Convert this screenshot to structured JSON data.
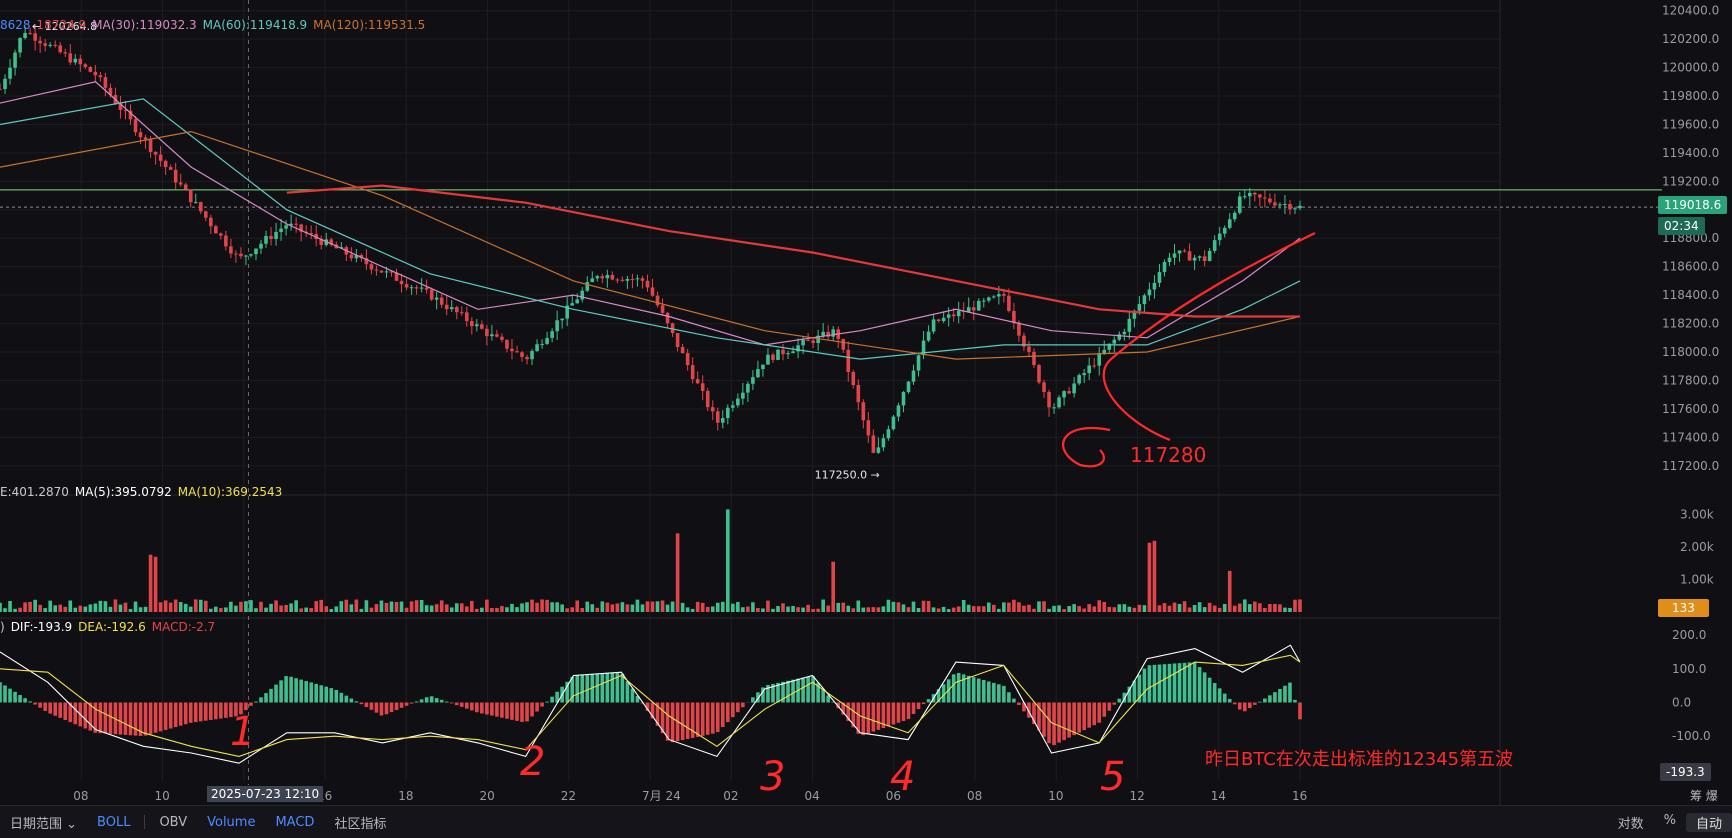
{
  "colors": {
    "bg": "#101014",
    "up": "#3fbf8f",
    "down": "#e0454a",
    "ma5": "#e05a6e",
    "ma30": "#d88ac7",
    "ma60": "#5fc9c0",
    "ma120": "#c8722f",
    "ma_long": "#e03a3a",
    "level": "#7be07b",
    "price_tag": "#29a37a",
    "vol_tag": "#e08e1a",
    "annotation": "#ff2a2a",
    "vol_ma5": "#ffffff",
    "vol_ma10": "#f0e050",
    "dif": "#ffffff",
    "dea": "#f0e050"
  },
  "price_legend": {
    "items": [
      {
        "text": "8628",
        "color": "#4f8cff"
      },
      {
        "text": "18724.9",
        "color": "#e0454a"
      },
      {
        "text": "MA(30):119032.3",
        "color": "#d88ac7"
      },
      {
        "text": "MA(60):119418.9",
        "color": "#5fc9c0"
      },
      {
        "text": "MA(120):119531.5",
        "color": "#c8722f"
      }
    ]
  },
  "volume_legend": {
    "items": [
      {
        "text": "E:401.2870",
        "color": "#c9c9cf"
      },
      {
        "text": "MA(5):395.0792",
        "color": "#ffffff"
      },
      {
        "text": "MA(10):369.2543",
        "color": "#f0e050"
      }
    ]
  },
  "macd_legend": {
    "items": [
      {
        "text": ")",
        "color": "#c9c9cf"
      },
      {
        "text": "DIF:-193.9",
        "color": "#ffffff"
      },
      {
        "text": "DEA:-192.6",
        "color": "#f0e050"
      },
      {
        "text": "MACD:-2.7",
        "color": "#e0454a"
      }
    ]
  },
  "chart_data": [
    {
      "type": "candlestick",
      "panel": "price",
      "y_axis_ticks": [
        117200,
        117400,
        117600,
        117800,
        118000,
        118200,
        118400,
        118600,
        118800,
        119000,
        119200,
        119400,
        119600,
        119800,
        120000,
        120200,
        120400
      ],
      "y_axis_labels": [
        "117200.0",
        "117400.0",
        "117600.0",
        "117800.0",
        "118000.0",
        "118200.0",
        "118400.0",
        "118600.0",
        "118800.0",
        "119000.0",
        "119200.0",
        "119400.0",
        "119600.0",
        "119800.0",
        "120000.0",
        "120200.0",
        "120400.0"
      ],
      "ylim": [
        117100,
        120440
      ],
      "x_tick_labels": [
        "08",
        "10",
        "14",
        "16",
        "18",
        "20",
        "22",
        "7月 24",
        "02",
        "04",
        "06",
        "08",
        "10",
        "12",
        "14",
        "16"
      ],
      "x_ticks": [
        2,
        4,
        6,
        8,
        10,
        12,
        14,
        16,
        18,
        20,
        22,
        24,
        26,
        28,
        30,
        32
      ],
      "x_count": 27.2,
      "crosshair_label": "2025-07-23 12:10",
      "crosshair_x": 5.2,
      "key_points": [
        {
          "t": 0,
          "price": 119850
        },
        {
          "t": 0.5,
          "price": 120264.8,
          "label": "← 120264.8"
        },
        {
          "t": 2,
          "price": 119950
        },
        {
          "t": 3,
          "price": 119500
        },
        {
          "t": 5,
          "price": 118650
        },
        {
          "t": 6,
          "price": 118900
        },
        {
          "t": 9,
          "price": 118400
        },
        {
          "t": 11,
          "price": 117950
        },
        {
          "t": 12.5,
          "price": 118550
        },
        {
          "t": 13.5,
          "price": 118500
        },
        {
          "t": 15,
          "price": 117500
        },
        {
          "t": 16,
          "price": 117950
        },
        {
          "t": 17.5,
          "price": 118150
        },
        {
          "t": 18.3,
          "price": 117250.0,
          "label": "117250.0 →"
        },
        {
          "t": 19.5,
          "price": 118200
        },
        {
          "t": 21,
          "price": 118400
        },
        {
          "t": 22,
          "price": 117600
        },
        {
          "t": 23.5,
          "price": 118150
        },
        {
          "t": 24.5,
          "price": 118700
        },
        {
          "t": 25.2,
          "price": 118650
        },
        {
          "t": 26,
          "price": 119100
        },
        {
          "t": 27.2,
          "price": 119018.6
        }
      ],
      "current_price": 119018.6,
      "current_price_label": "119018.6",
      "countdown": "02:34",
      "horizontal_level": 119140,
      "moving_averages": [
        {
          "name": "MA(30)",
          "points": [
            [
              0,
              119750
            ],
            [
              2,
              119900
            ],
            [
              4,
              119300
            ],
            [
              6,
              118900
            ],
            [
              8,
              118600
            ],
            [
              10,
              118300
            ],
            [
              12,
              118400
            ],
            [
              14,
              118250
            ],
            [
              16,
              118050
            ],
            [
              18,
              118150
            ],
            [
              20,
              118300
            ],
            [
              22,
              118150
            ],
            [
              24,
              118100
            ],
            [
              26,
              118500
            ],
            [
              27.2,
              118800
            ]
          ]
        },
        {
          "name": "MA(60)",
          "points": [
            [
              0,
              119600
            ],
            [
              3,
              119780
            ],
            [
              6,
              119000
            ],
            [
              9,
              118550
            ],
            [
              12,
              118300
            ],
            [
              15,
              118100
            ],
            [
              18,
              117950
            ],
            [
              21,
              118050
            ],
            [
              24,
              118050
            ],
            [
              26,
              118300
            ],
            [
              27.2,
              118500
            ]
          ]
        },
        {
          "name": "MA(120)",
          "points": [
            [
              0,
              119300
            ],
            [
              4,
              119550
            ],
            [
              8,
              119100
            ],
            [
              12,
              118500
            ],
            [
              16,
              118150
            ],
            [
              20,
              117950
            ],
            [
              24,
              118000
            ],
            [
              27.2,
              118250
            ]
          ]
        },
        {
          "name": "long",
          "points": [
            [
              6,
              119120
            ],
            [
              8,
              119170
            ],
            [
              11,
              119050
            ],
            [
              14,
              118850
            ],
            [
              17,
              118700
            ],
            [
              20,
              118500
            ],
            [
              23,
              118300
            ],
            [
              25,
              118250
            ],
            [
              27.2,
              118250
            ]
          ]
        }
      ],
      "annotations": [
        {
          "text": "117280",
          "color": "#ff2a2a"
        }
      ]
    },
    {
      "type": "bar",
      "panel": "volume",
      "y_axis_labels": [
        "1.00k",
        "2.00k",
        "3.00k"
      ],
      "y_axis_ticks": [
        1000,
        2000,
        3000
      ],
      "ylim": [
        0,
        3300
      ],
      "current_volume_label": "133",
      "peaks": [
        {
          "t": 3.2,
          "value": 2000
        },
        {
          "t": 14.2,
          "value": 2500
        },
        {
          "t": 15.2,
          "value": 3200
        },
        {
          "t": 17.4,
          "value": 1700
        },
        {
          "t": 24.1,
          "value": 2200
        },
        {
          "t": 25.7,
          "value": 1400
        }
      ],
      "baseline_value": 300
    },
    {
      "type": "macd",
      "panel": "macd",
      "y_axis_labels": [
        "-100.0",
        "0.0",
        "100.0",
        "200.0"
      ],
      "y_axis_ticks": [
        -100,
        0,
        100,
        200
      ],
      "ylim": [
        -230,
        230
      ],
      "current_label": "-193.3",
      "histogram_shape": [
        [
          0,
          60
        ],
        [
          1,
          -30
        ],
        [
          2,
          -90
        ],
        [
          3,
          -100
        ],
        [
          4,
          -60
        ],
        [
          5,
          -40
        ],
        [
          6,
          80
        ],
        [
          7,
          40
        ],
        [
          8,
          -40
        ],
        [
          9,
          20
        ],
        [
          10,
          -30
        ],
        [
          11,
          -60
        ],
        [
          12,
          80
        ],
        [
          13,
          90
        ],
        [
          14,
          -120
        ],
        [
          15,
          -90
        ],
        [
          16,
          50
        ],
        [
          17,
          80
        ],
        [
          18,
          -100
        ],
        [
          19,
          -50
        ],
        [
          20,
          90
        ],
        [
          21,
          50
        ],
        [
          22,
          -130
        ],
        [
          23,
          -60
        ],
        [
          24,
          110
        ],
        [
          25,
          120
        ],
        [
          26,
          -30
        ],
        [
          27,
          60
        ],
        [
          27.2,
          -50
        ]
      ],
      "dif_points": [
        [
          0,
          150
        ],
        [
          1,
          60
        ],
        [
          2,
          -80
        ],
        [
          3,
          -130
        ],
        [
          4,
          -150
        ],
        [
          5,
          -180
        ],
        [
          6,
          -90
        ],
        [
          7,
          -90
        ],
        [
          8,
          -120
        ],
        [
          9,
          -90
        ],
        [
          10,
          -120
        ],
        [
          11,
          -160
        ],
        [
          12,
          80
        ],
        [
          13,
          90
        ],
        [
          14,
          -110
        ],
        [
          15,
          -160
        ],
        [
          16,
          40
        ],
        [
          17,
          80
        ],
        [
          18,
          -90
        ],
        [
          19,
          -110
        ],
        [
          20,
          120
        ],
        [
          21,
          110
        ],
        [
          22,
          -150
        ],
        [
          23,
          -120
        ],
        [
          24,
          130
        ],
        [
          25,
          160
        ],
        [
          26,
          90
        ],
        [
          27,
          170
        ],
        [
          27.2,
          120
        ]
      ],
      "dea_points": [
        [
          0,
          100
        ],
        [
          1,
          90
        ],
        [
          2,
          -20
        ],
        [
          3,
          -90
        ],
        [
          4,
          -130
        ],
        [
          5,
          -160
        ],
        [
          6,
          -110
        ],
        [
          7,
          -100
        ],
        [
          8,
          -110
        ],
        [
          9,
          -100
        ],
        [
          10,
          -110
        ],
        [
          11,
          -140
        ],
        [
          12,
          20
        ],
        [
          13,
          80
        ],
        [
          14,
          -40
        ],
        [
          15,
          -130
        ],
        [
          16,
          -20
        ],
        [
          17,
          60
        ],
        [
          18,
          -40
        ],
        [
          19,
          -90
        ],
        [
          20,
          60
        ],
        [
          21,
          110
        ],
        [
          22,
          -60
        ],
        [
          23,
          -120
        ],
        [
          24,
          40
        ],
        [
          25,
          120
        ],
        [
          26,
          110
        ],
        [
          27,
          140
        ],
        [
          27.2,
          120
        ]
      ]
    }
  ],
  "annotation_text": "昨日BTC在次走出标准的12345第五波",
  "wave_numbers": [
    "1",
    "2",
    "3",
    "4",
    "5"
  ],
  "toolbar": {
    "items": [
      {
        "label": "日期范围 ⌄",
        "active": false
      },
      {
        "label": "BOLL",
        "active": true
      },
      {
        "label": "OBV",
        "active": false
      },
      {
        "label": "Volume",
        "active": true
      },
      {
        "label": "MACD",
        "active": true
      },
      {
        "label": "社区指标",
        "active": false
      }
    ],
    "right": [
      {
        "label": "对数",
        "active": false
      },
      {
        "label": "%",
        "active": false
      },
      {
        "label": "自动",
        "active": true
      }
    ]
  },
  "scale_corner": {
    "label": "筹 爆"
  }
}
